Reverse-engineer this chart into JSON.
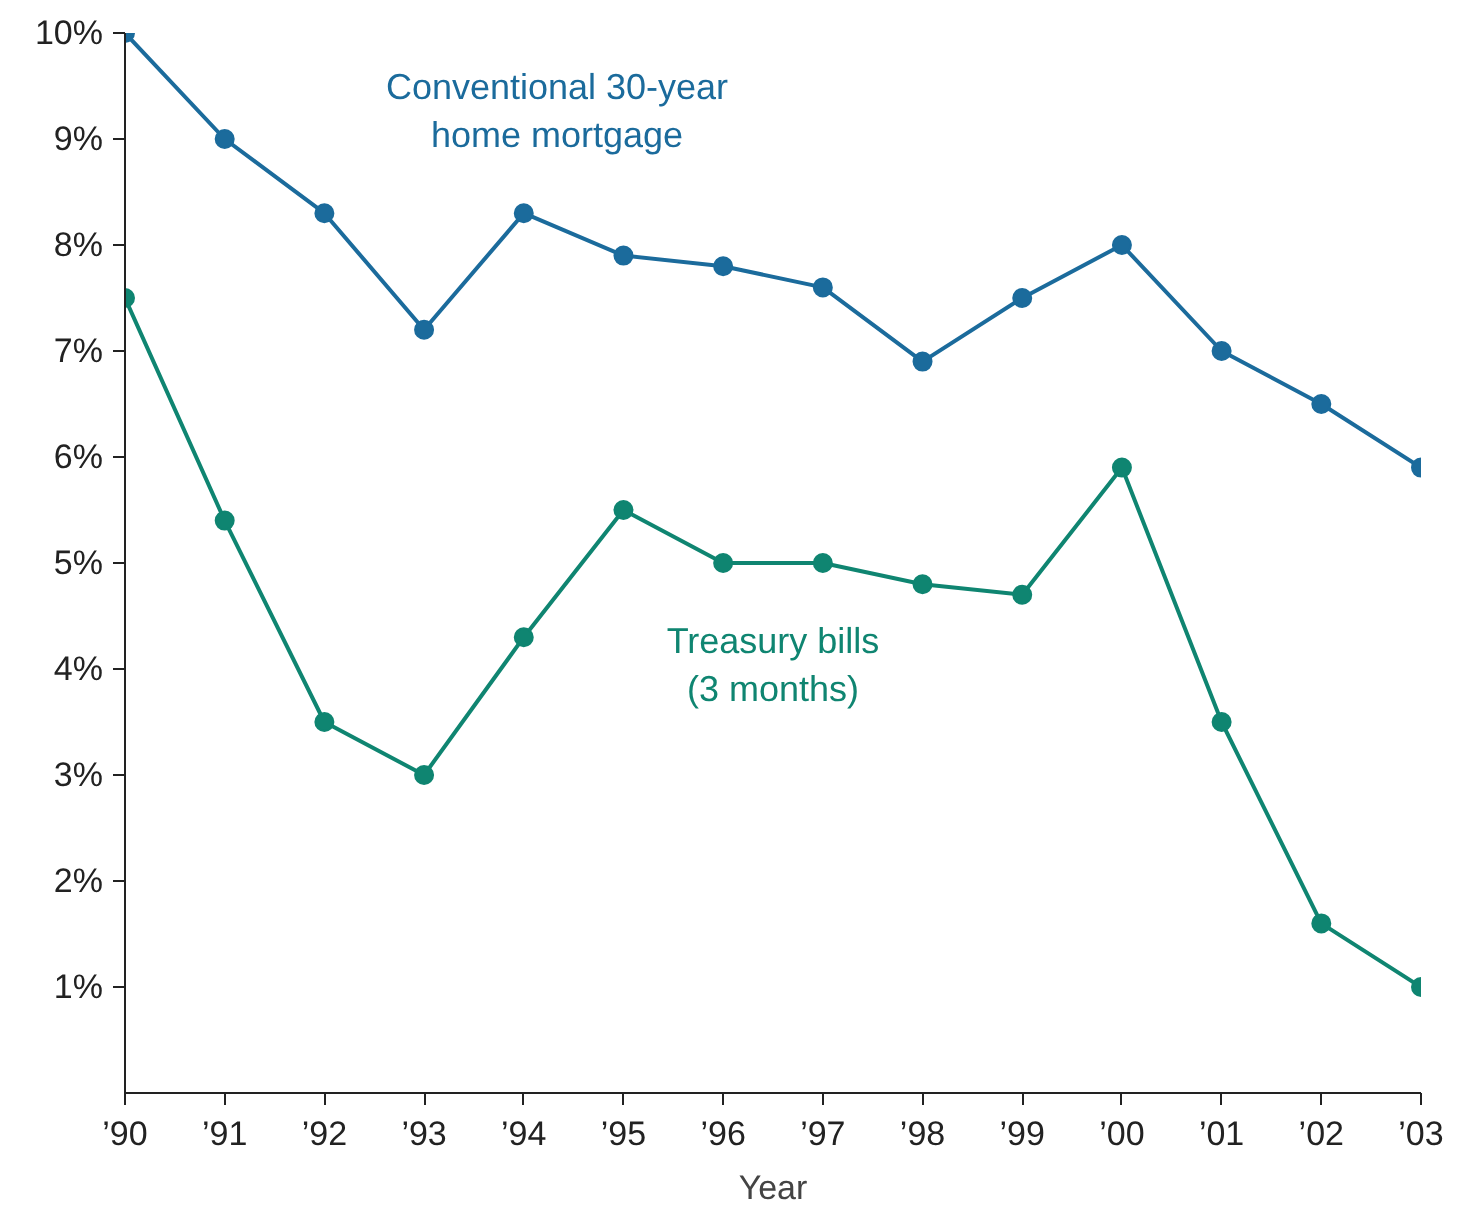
{
  "chart_data": {
    "type": "line",
    "xlabel": "Year",
    "categories": [
      "’90",
      "’91",
      "’92",
      "’93",
      "’94",
      "’95",
      "’96",
      "’97",
      "’98",
      "’99",
      "’00",
      "’01",
      "’02",
      "’03"
    ],
    "series": [
      {
        "name": "Conventional 30-year\nhome mortgage",
        "color": "#1b6b9c",
        "values": [
          10,
          9,
          8.3,
          7.2,
          8.3,
          7.9,
          7.8,
          7.6,
          6.9,
          7.5,
          8.0,
          7.0,
          6.5,
          5.9
        ]
      },
      {
        "name": "Treasury bills\n(3 months)",
        "color": "#0f8571",
        "values": [
          7.5,
          5.4,
          3.5,
          3.0,
          4.3,
          5.5,
          5.0,
          5.0,
          4.8,
          4.7,
          5.9,
          3.5,
          1.6,
          1.0
        ]
      }
    ],
    "ylim": [
      0,
      10
    ],
    "yticks": [
      {
        "value": 1,
        "label": "1%"
      },
      {
        "value": 2,
        "label": "2%"
      },
      {
        "value": 3,
        "label": "3%"
      },
      {
        "value": 4,
        "label": "4%"
      },
      {
        "value": 5,
        "label": "5%"
      },
      {
        "value": 6,
        "label": "6%"
      },
      {
        "value": 7,
        "label": "7%"
      },
      {
        "value": 8,
        "label": "8%"
      },
      {
        "value": 9,
        "label": "9%"
      },
      {
        "value": 10,
        "label": "10%"
      }
    ],
    "grid": false,
    "marker": "circle",
    "line_style": "solid"
  }
}
